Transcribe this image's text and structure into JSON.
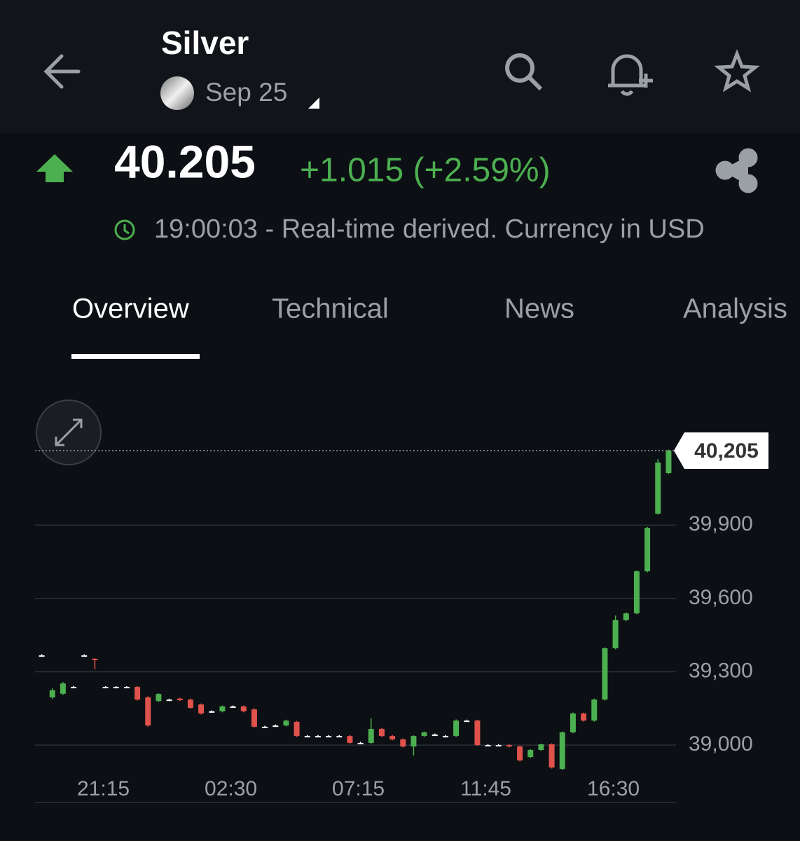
{
  "header": {
    "title": "Silver",
    "contract": "Sep 25"
  },
  "quote": {
    "price": "40.205",
    "change": "+1.015 (+2.59%)",
    "status": "19:00:03 - Real-time derived. Currency in USD"
  },
  "tabs": [
    "Overview",
    "Technical",
    "News",
    "Analysis"
  ],
  "chart_data": {
    "type": "candlestick",
    "categories": [
      null,
      null,
      null,
      null,
      null,
      null,
      "21:15",
      null,
      null,
      null,
      null,
      null,
      null,
      null,
      null,
      null,
      null,
      null,
      "02:30",
      null,
      null,
      null,
      null,
      null,
      null,
      null,
      null,
      null,
      null,
      null,
      "07:15",
      null,
      null,
      null,
      null,
      null,
      null,
      null,
      null,
      null,
      null,
      null,
      "11:45",
      null,
      null,
      null,
      null,
      null,
      null,
      null,
      null,
      null,
      null,
      null,
      "16:30",
      null,
      null,
      null,
      null,
      null
    ],
    "open": [
      39367,
      39195,
      39210,
      39238,
      39367,
      39353,
      39238,
      39238,
      39238,
      39238,
      39195,
      39180,
      39186,
      39190,
      39186,
      39166,
      39138,
      39138,
      39158,
      39158,
      39146,
      39075,
      39080,
      39080,
      39095,
      39037,
      39037,
      39037,
      39037,
      39037,
      39009,
      39009,
      39066,
      39037,
      39023,
      38994,
      39037,
      39043,
      39037,
      39037,
      39100,
      39100,
      39000,
      39000,
      39000,
      38994,
      38951,
      38980,
      39003,
      38902,
      39052,
      39129,
      39100,
      39186,
      39396,
      39511,
      39539,
      39711,
      39947,
      40113
    ],
    "high": [
      39372,
      39232,
      39258,
      39242,
      39371,
      39356,
      39241,
      39241,
      39241,
      39242,
      39200,
      39212,
      39190,
      39194,
      39190,
      39170,
      39142,
      39162,
      39162,
      39162,
      39150,
      39079,
      39084,
      39104,
      39099,
      39041,
      39041,
      39041,
      39041,
      39041,
      39013,
      39109,
      39070,
      39041,
      39027,
      39040,
      39055,
      39047,
      39041,
      39105,
      39104,
      39104,
      39004,
      39004,
      39004,
      38998,
      38983,
      39006,
      39007,
      39056,
      39133,
      39133,
      39190,
      39400,
      39530,
      39543,
      39715,
      39893,
      40170,
      40209
    ],
    "low": [
      39362,
      39188,
      39205,
      39234,
      39363,
      39310,
      39235,
      39235,
      39235,
      39182,
      39075,
      39176,
      39182,
      39180,
      39148,
      39125,
      39134,
      39134,
      39154,
      39134,
      39071,
      39071,
      39076,
      39076,
      39033,
      39033,
      39033,
      39033,
      39033,
      39005,
      39005,
      39005,
      39033,
      39019,
      38990,
      38957,
      39033,
      39039,
      39033,
      39033,
      39096,
      38996,
      38996,
      38996,
      38990,
      38933,
      38947,
      38976,
      38904,
      38898,
      39048,
      39096,
      39096,
      39182,
      39392,
      39507,
      39535,
      39707,
      39943,
      40109
    ],
    "close": [
      39367,
      39224,
      39252,
      39238,
      39367,
      39350,
      39238,
      39238,
      39238,
      39186,
      39080,
      39209,
      39186,
      39184,
      39152,
      39129,
      39138,
      39158,
      39158,
      39138,
      39075,
      39075,
      39080,
      39100,
      39037,
      39037,
      39037,
      39037,
      39037,
      39009,
      39009,
      39066,
      39037,
      39023,
      38994,
      39037,
      39052,
      39043,
      39037,
      39100,
      39100,
      39000,
      39000,
      39000,
      38994,
      38937,
      38980,
      39003,
      38908,
      39052,
      39129,
      39100,
      39186,
      39396,
      39511,
      39539,
      39711,
      39889,
      40156,
      40205
    ],
    "up_color": "#4caf50",
    "down_color": "#e0524c",
    "ylim": [
      38765,
      40443
    ],
    "yticks": [
      {
        "value": 39000,
        "label": "39,000"
      },
      {
        "value": 39300,
        "label": "39,300"
      },
      {
        "value": 39600,
        "label": "39,600"
      },
      {
        "value": 39900,
        "label": "39,900"
      }
    ],
    "grid": true,
    "last_price": {
      "value": 40205,
      "label": "40,205"
    }
  }
}
